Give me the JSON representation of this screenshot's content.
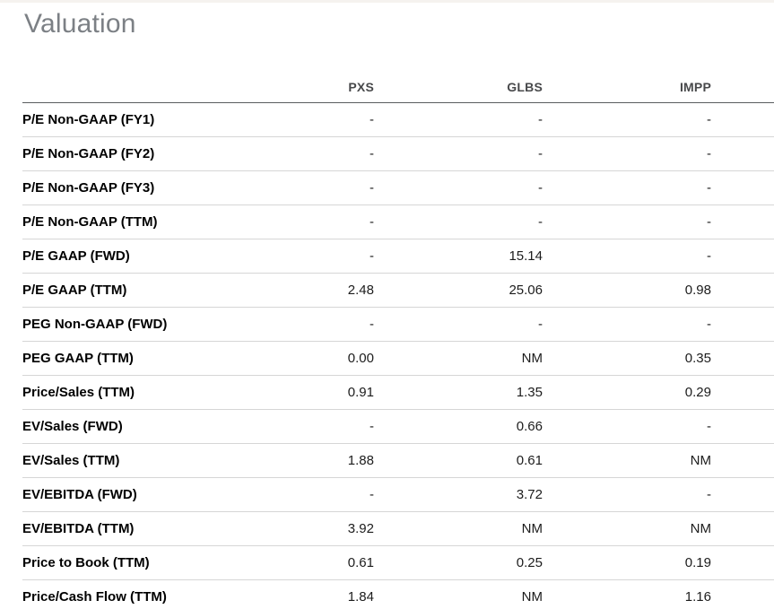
{
  "page": {
    "title": "Valuation"
  },
  "table": {
    "columns": [
      "PXS",
      "GLBS",
      "IMPP"
    ],
    "rows": [
      {
        "label": "P/E Non-GAAP (FY1)",
        "values": [
          "-",
          "-",
          "-"
        ]
      },
      {
        "label": "P/E Non-GAAP (FY2)",
        "values": [
          "-",
          "-",
          "-"
        ]
      },
      {
        "label": "P/E Non-GAAP (FY3)",
        "values": [
          "-",
          "-",
          "-"
        ]
      },
      {
        "label": "P/E Non-GAAP (TTM)",
        "values": [
          "-",
          "-",
          "-"
        ]
      },
      {
        "label": "P/E GAAP (FWD)",
        "values": [
          "-",
          "15.14",
          "-"
        ]
      },
      {
        "label": "P/E GAAP (TTM)",
        "values": [
          "2.48",
          "25.06",
          "0.98"
        ]
      },
      {
        "label": "PEG Non-GAAP (FWD)",
        "values": [
          "-",
          "-",
          "-"
        ]
      },
      {
        "label": "PEG GAAP (TTM)",
        "values": [
          "0.00",
          "NM",
          "0.35"
        ]
      },
      {
        "label": "Price/Sales (TTM)",
        "values": [
          "0.91",
          "1.35",
          "0.29"
        ]
      },
      {
        "label": "EV/Sales (FWD)",
        "values": [
          "-",
          "0.66",
          "-"
        ]
      },
      {
        "label": "EV/Sales (TTM)",
        "values": [
          "1.88",
          "0.61",
          "NM"
        ]
      },
      {
        "label": "EV/EBITDA (FWD)",
        "values": [
          "-",
          "3.72",
          "-"
        ]
      },
      {
        "label": "EV/EBITDA (TTM)",
        "values": [
          "3.92",
          "NM",
          "NM"
        ]
      },
      {
        "label": "Price to Book (TTM)",
        "values": [
          "0.61",
          "0.25",
          "0.19"
        ]
      },
      {
        "label": "Price/Cash Flow (TTM)",
        "values": [
          "1.84",
          "NM",
          "1.16"
        ]
      }
    ]
  },
  "colors": {
    "title_text": "#7c8085",
    "header_text": "#48494b",
    "header_line": "#595d5f",
    "row_line": "#d6d6d6",
    "label_text": "#000000",
    "value_text": "#1c1c1c",
    "top_strip": "#f5f2ef"
  }
}
